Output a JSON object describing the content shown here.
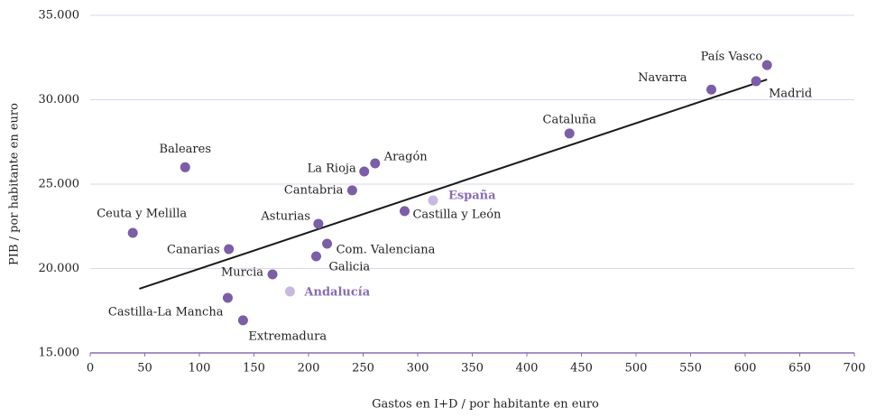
{
  "chart_data": {
    "type": "scatter",
    "xlabel": "Gastos en I+D / por habitante en euro",
    "ylabel": "PIB / por habitante en euro",
    "labels": [
      "País Vasco",
      "Madrid",
      "Navarra",
      "Cataluña",
      "Baleares",
      "Aragón",
      "La Rioja",
      "Cantabria",
      "España",
      "Castilla y León",
      "Asturias",
      "Ceuta y Melilla",
      "Com. Valenciana",
      "Canarias",
      "Galicia",
      "Murcia",
      "Andalucía",
      "Castilla-La Mancha",
      "Extremadura"
    ],
    "x": [
      620,
      610,
      569,
      439,
      87,
      261,
      251,
      240,
      314,
      288,
      209,
      39,
      217,
      127,
      207,
      167,
      183,
      126,
      140
    ],
    "y": [
      32050,
      31100,
      30600,
      28000,
      26000,
      26230,
      25750,
      24630,
      24040,
      23400,
      22650,
      22110,
      21470,
      21150,
      20720,
      19650,
      18640,
      18260,
      16930
    ],
    "colors": [
      "#7b5ea7",
      "#7b5ea7",
      "#7b5ea7",
      "#7b5ea7",
      "#7b5ea7",
      "#7b5ea7",
      "#7b5ea7",
      "#7b5ea7",
      "#c9b8df",
      "#7b5ea7",
      "#7b5ea7",
      "#7b5ea7",
      "#7b5ea7",
      "#7b5ea7",
      "#7b5ea7",
      "#7b5ea7",
      "#c9b8df",
      "#7b5ea7",
      "#7b5ea7"
    ],
    "trendline": {
      "x": [
        45,
        620
      ],
      "y": [
        18800,
        31200
      ],
      "color": "#1a1a1a"
    },
    "xlim": [
      0,
      700
    ],
    "ylim": [
      15000,
      35000
    ],
    "xticks": [
      0,
      50,
      100,
      150,
      200,
      250,
      300,
      350,
      400,
      450,
      500,
      550,
      600,
      650,
      700
    ],
    "yticks": [
      {
        "value": 15000,
        "label": "15.000"
      },
      {
        "value": 20000,
        "label": "20.000"
      },
      {
        "value": 25000,
        "label": "25.000"
      },
      {
        "value": 30000,
        "label": "30.000"
      },
      {
        "value": 35000,
        "label": "35.000"
      }
    ],
    "grid": true
  }
}
